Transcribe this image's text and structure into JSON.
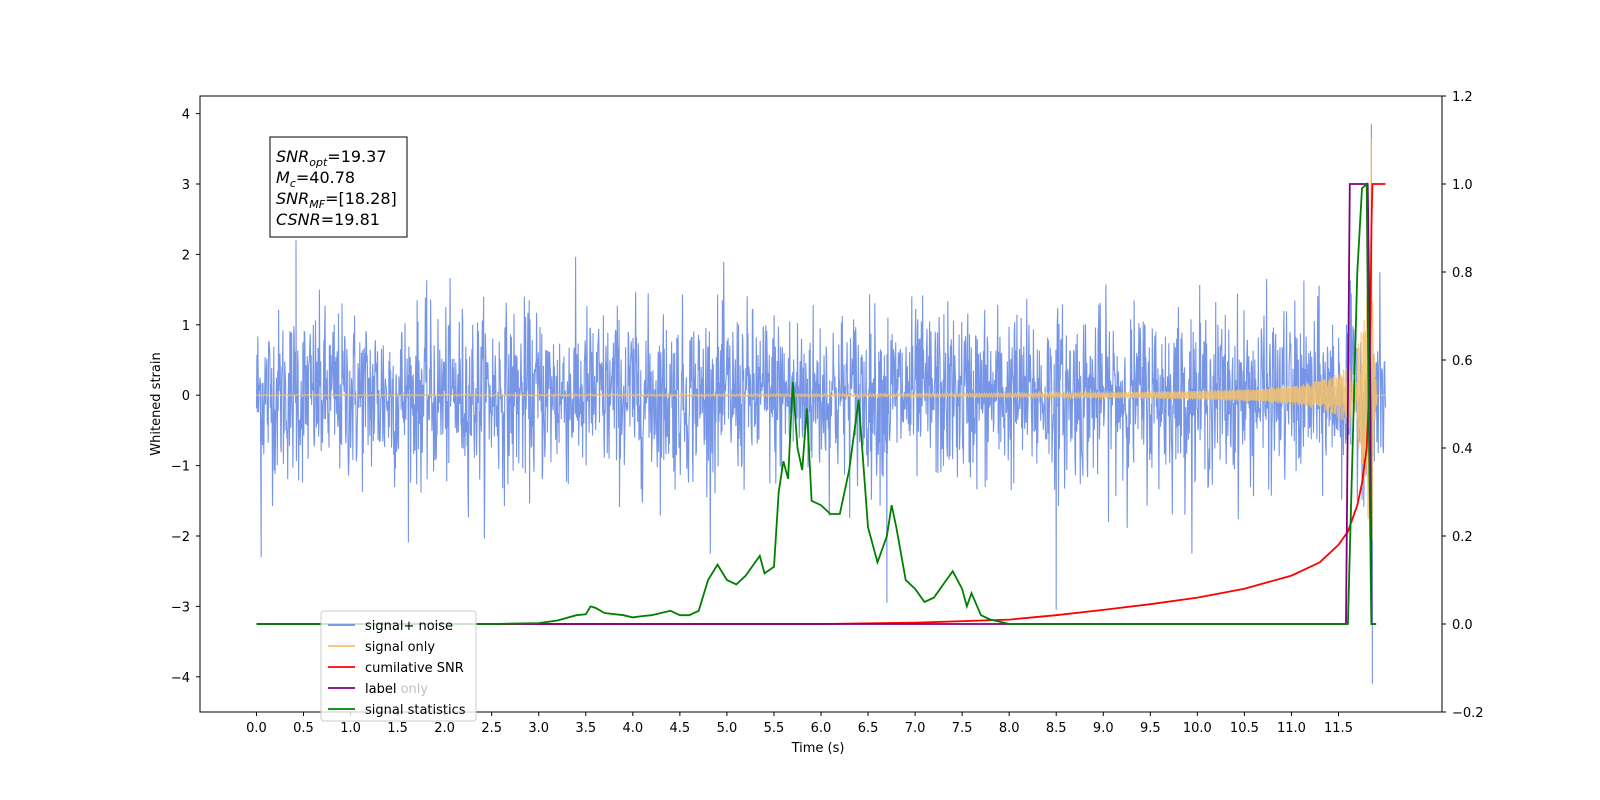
{
  "chart_data": {
    "type": "line",
    "xlabel": "Time (s)",
    "ylabel_left": "Whitened strain",
    "ylabel_right": "",
    "xlim": [
      -0.6,
      12.6
    ],
    "ylim_left": [
      -4.5,
      4.25
    ],
    "ylim_right": [
      -0.2,
      1.2
    ],
    "x_ticks": [
      0.0,
      0.5,
      1.0,
      1.5,
      2.0,
      2.5,
      3.0,
      3.5,
      4.0,
      4.5,
      5.0,
      5.5,
      6.0,
      6.5,
      7.0,
      7.5,
      8.0,
      8.5,
      9.0,
      9.5,
      10.0,
      10.5,
      11.0,
      11.5
    ],
    "x_tick_labels": [
      "0.0",
      "0.5",
      "1.0",
      "1.5",
      "2.0",
      "2.5",
      "3.0",
      "3.5",
      "4.0",
      "4.5",
      "5.0",
      "5.5",
      "6.0",
      "6.5",
      "7.0",
      "7.5",
      "8.0",
      "8.5",
      "9.0",
      "9.5",
      "10.0",
      "10.5",
      "11.0",
      "11.5"
    ],
    "y_left_ticks": [
      -4,
      -3,
      -2,
      -1,
      0,
      1,
      2,
      3,
      4
    ],
    "y_left_tick_labels": [
      "−4",
      "−3",
      "−2",
      "−1",
      "0",
      "1",
      "2",
      "3",
      "4"
    ],
    "y_right_ticks": [
      -0.2,
      0.0,
      0.2,
      0.4,
      0.6,
      0.8,
      1.0,
      1.2
    ],
    "y_right_tick_labels": [
      "−0.2",
      "0.0",
      "0.2",
      "0.4",
      "0.6",
      "0.8",
      "1.0",
      "1.2"
    ],
    "annotation": [
      {
        "name": "SNR",
        "sub": "opt",
        "value": "=19.37"
      },
      {
        "name": "M",
        "sub": "c",
        "value": "=40.78"
      },
      {
        "name": "SNR",
        "sub": "MF",
        "value": "=[18.28]"
      },
      {
        "name": "CSNR",
        "sub": "",
        "value": "=19.81"
      }
    ],
    "legend": {
      "placement": "lower-left",
      "entries": [
        {
          "label": "signal+ noise",
          "color": "#6f8fe6"
        },
        {
          "label": "signal only",
          "color": "#f5c26b"
        },
        {
          "label": "cumilative SNR",
          "color": "#ff0000"
        },
        {
          "label": "label",
          "color": "#800080"
        },
        {
          "label": "signal statistics",
          "color": "#008000"
        }
      ],
      "hidden_behind_text": "label only"
    },
    "series": [
      {
        "name": "signal+ noise",
        "axis": "left",
        "color": "#6f8fe6",
        "x_range": [
          0.0,
          12.0
        ],
        "noise_std": 0.6,
        "extremes": [
          [
            0.42,
            2.2
          ],
          [
            0.05,
            -2.3
          ],
          [
            6.7,
            -2.95
          ],
          [
            8.5,
            -3.05
          ],
          [
            11.85,
            3.85
          ],
          [
            11.86,
            -4.1
          ]
        ]
      },
      {
        "name": "signal only",
        "axis": "left",
        "color": "#f5c26b",
        "x_range": [
          0.0,
          12.0
        ],
        "peak_time": 11.85,
        "peak_amplitude": 4.0
      },
      {
        "name": "cumilative SNR",
        "axis": "right",
        "color": "#ff0000",
        "x": [
          0.0,
          6.0,
          7.0,
          8.0,
          8.5,
          9.0,
          9.5,
          10.0,
          10.5,
          11.0,
          11.3,
          11.5,
          11.6,
          11.7,
          11.75,
          11.8,
          11.82,
          11.84,
          11.85,
          11.86,
          12.0
        ],
        "y": [
          0.0,
          0.0,
          0.003,
          0.01,
          0.02,
          0.032,
          0.045,
          0.06,
          0.08,
          0.11,
          0.14,
          0.18,
          0.21,
          0.27,
          0.32,
          0.4,
          0.5,
          0.7,
          0.9,
          1.0,
          1.0
        ]
      },
      {
        "name": "label",
        "axis": "right",
        "color": "#800080",
        "x": [
          0.0,
          11.58,
          11.62,
          11.81,
          11.83,
          11.84,
          11.85,
          11.9
        ],
        "y": [
          0.0,
          0.0,
          1.0,
          1.0,
          0.7,
          0.5,
          0.0,
          0.0
        ]
      },
      {
        "name": "signal statistics",
        "axis": "right",
        "color": "#008000",
        "x": [
          0.0,
          2.5,
          3.0,
          3.2,
          3.4,
          3.5,
          3.55,
          3.6,
          3.7,
          3.9,
          4.0,
          4.1,
          4.2,
          4.3,
          4.4,
          4.5,
          4.6,
          4.7,
          4.8,
          4.9,
          5.0,
          5.1,
          5.2,
          5.3,
          5.35,
          5.4,
          5.5,
          5.55,
          5.6,
          5.65,
          5.7,
          5.75,
          5.8,
          5.85,
          5.9,
          6.0,
          6.1,
          6.2,
          6.3,
          6.4,
          6.5,
          6.6,
          6.7,
          6.75,
          6.8,
          6.9,
          7.0,
          7.1,
          7.2,
          7.3,
          7.4,
          7.45,
          7.5,
          7.55,
          7.6,
          7.7,
          7.8,
          7.9,
          8.0,
          8.2,
          11.6,
          11.65,
          11.7,
          11.75,
          11.8,
          11.82,
          11.85,
          11.9
        ],
        "y": [
          0.0,
          0.0,
          0.002,
          0.008,
          0.02,
          0.022,
          0.04,
          0.037,
          0.025,
          0.02,
          0.015,
          0.018,
          0.02,
          0.025,
          0.03,
          0.02,
          0.02,
          0.03,
          0.1,
          0.135,
          0.1,
          0.09,
          0.11,
          0.14,
          0.155,
          0.115,
          0.13,
          0.3,
          0.37,
          0.33,
          0.55,
          0.4,
          0.35,
          0.49,
          0.28,
          0.27,
          0.25,
          0.25,
          0.35,
          0.51,
          0.22,
          0.14,
          0.2,
          0.27,
          0.22,
          0.1,
          0.08,
          0.05,
          0.06,
          0.09,
          0.12,
          0.1,
          0.08,
          0.04,
          0.07,
          0.02,
          0.01,
          0.005,
          0.0,
          0.0,
          0.0,
          0.4,
          0.8,
          0.99,
          1.0,
          0.5,
          0.0,
          0.0
        ]
      }
    ]
  }
}
